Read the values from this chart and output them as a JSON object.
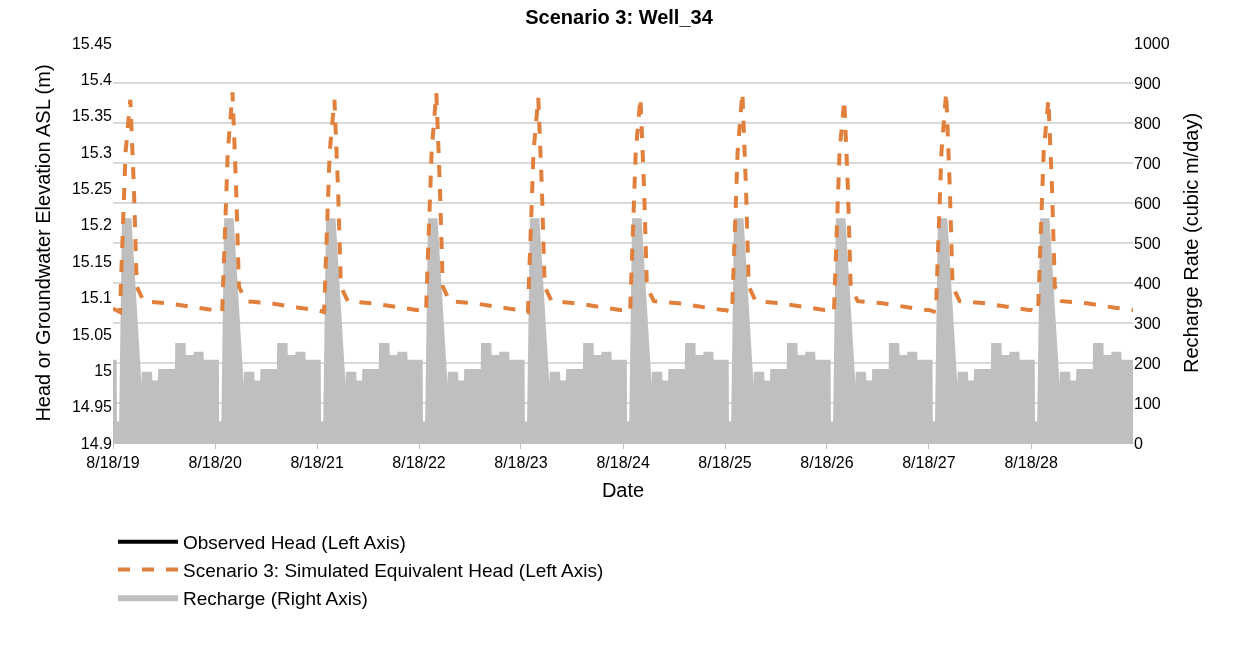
{
  "chart_data": {
    "type": "line",
    "title": "Scenario 3: Well_34",
    "xlabel": "Date",
    "ylabel": "Head or Groundwater Elevation ASL (m)",
    "y2label": "Recharge Rate (cubic m/day)",
    "xlim": [
      "2019-08-18",
      "2029-08-18"
    ],
    "xticks": [
      {
        "value": "2019-08-18",
        "label": "8/18/19"
      },
      {
        "value": "2020-08-18",
        "label": "8/18/20"
      },
      {
        "value": "2021-08-18",
        "label": "8/18/21"
      },
      {
        "value": "2022-08-18",
        "label": "8/18/22"
      },
      {
        "value": "2023-08-18",
        "label": "8/18/23"
      },
      {
        "value": "2024-08-18",
        "label": "8/18/24"
      },
      {
        "value": "2025-08-18",
        "label": "8/18/25"
      },
      {
        "value": "2026-08-18",
        "label": "8/18/26"
      },
      {
        "value": "2027-08-18",
        "label": "8/18/27"
      },
      {
        "value": "2028-08-18",
        "label": "8/18/28"
      }
    ],
    "ylim": [
      14.9,
      15.45
    ],
    "yticks": [
      14.9,
      14.95,
      15,
      15.05,
      15.1,
      15.15,
      15.2,
      15.25,
      15.3,
      15.35,
      15.4,
      15.45
    ],
    "y2lim": [
      0,
      1000
    ],
    "y2ticks": [
      0,
      100,
      200,
      300,
      400,
      500,
      600,
      700,
      800,
      900,
      1000
    ],
    "grid": "y",
    "legend": "bottom",
    "series": [
      {
        "name": "Observed Head (Left Axis)",
        "color": "#000000",
        "line_style": "solid"
      },
      {
        "name": "Scenario 3: Simulated Equivalent Head (Left Axis)",
        "color": "#e0803c",
        "line_style": "dashed",
        "x": [
          "2019-08-18",
          "2019-09-12",
          "2019-10-02",
          "2019-10-19",
          "2019-11-01",
          "2019-11-11",
          "2019-12-06",
          "2020-03-06",
          "2020-06-14",
          "2020-08-08",
          "2020-08-18",
          "2020-09-12",
          "2020-10-02",
          "2020-10-19",
          "2020-11-01",
          "2020-11-11",
          "2020-12-06",
          "2021-03-06",
          "2021-06-14",
          "2021-08-08",
          "2021-08-18",
          "2021-09-12",
          "2021-10-02",
          "2021-10-19",
          "2021-11-01",
          "2021-11-11",
          "2021-12-06",
          "2022-03-06",
          "2022-06-14",
          "2022-08-08",
          "2022-08-18",
          "2022-09-12",
          "2022-10-02",
          "2022-10-19",
          "2022-11-01",
          "2022-11-11",
          "2022-12-06",
          "2023-03-06",
          "2023-06-14",
          "2023-08-08",
          "2023-08-18",
          "2023-09-12",
          "2023-10-02",
          "2023-10-19",
          "2023-11-01",
          "2023-11-11",
          "2023-12-06",
          "2024-03-06",
          "2024-06-14",
          "2024-08-08",
          "2024-08-18",
          "2024-09-12",
          "2024-10-02",
          "2024-10-19",
          "2024-11-01",
          "2024-11-11",
          "2024-12-06",
          "2025-03-06",
          "2025-06-14",
          "2025-08-08",
          "2025-08-18",
          "2025-09-12",
          "2025-10-02",
          "2025-10-19",
          "2025-11-01",
          "2025-11-11",
          "2025-12-06",
          "2026-03-06",
          "2026-06-14",
          "2026-08-08",
          "2026-08-18",
          "2026-09-12",
          "2026-10-02",
          "2026-10-19",
          "2026-11-01",
          "2026-11-11",
          "2026-12-06",
          "2027-03-06",
          "2027-06-14",
          "2027-08-08",
          "2027-08-18",
          "2027-09-12",
          "2027-10-02",
          "2027-10-19",
          "2027-11-01",
          "2027-11-11",
          "2027-12-06",
          "2028-03-06",
          "2028-06-14",
          "2028-08-08",
          "2028-08-18",
          "2028-09-12",
          "2028-10-02",
          "2028-10-19",
          "2028-11-01",
          "2028-11-11",
          "2028-12-06",
          "2029-03-06",
          "2029-06-14",
          "2029-08-18"
        ],
        "values": [
          15.085,
          15.08,
          15.3,
          15.372,
          15.25,
          15.115,
          15.095,
          15.092,
          15.086,
          15.083,
          15.083,
          15.08,
          15.3,
          15.382,
          15.25,
          15.115,
          15.095,
          15.092,
          15.086,
          15.083,
          15.083,
          15.08,
          15.3,
          15.372,
          15.25,
          15.115,
          15.095,
          15.092,
          15.086,
          15.083,
          15.083,
          15.08,
          15.3,
          15.382,
          15.25,
          15.115,
          15.095,
          15.092,
          15.086,
          15.083,
          15.083,
          15.08,
          15.3,
          15.375,
          15.25,
          15.115,
          15.095,
          15.092,
          15.086,
          15.083,
          15.083,
          15.08,
          15.3,
          15.375,
          15.25,
          15.115,
          15.095,
          15.092,
          15.086,
          15.083,
          15.083,
          15.08,
          15.3,
          15.382,
          15.25,
          15.115,
          15.095,
          15.092,
          15.086,
          15.083,
          15.083,
          15.08,
          15.3,
          15.372,
          15.25,
          15.115,
          15.095,
          15.092,
          15.086,
          15.083,
          15.083,
          15.08,
          15.3,
          15.382,
          15.25,
          15.115,
          15.095,
          15.092,
          15.086,
          15.083,
          15.083,
          15.08,
          15.3,
          15.372,
          15.25,
          15.115,
          15.095,
          15.092,
          15.086,
          15.083
        ]
      },
      {
        "name": "Recharge (Right Axis)",
        "type": "area",
        "axis": "y2",
        "color": "#bfbfbf",
        "x": [
          "2019-08-18",
          "2019-08-31",
          "2019-09-01",
          "2019-09-09",
          "2019-09-19",
          "2019-10-23",
          "2019-11-28",
          "2019-11-29",
          "2020-01-05",
          "2020-01-06",
          "2020-01-26",
          "2020-01-27",
          "2020-03-27",
          "2020-03-28",
          "2020-05-04",
          "2020-05-05",
          "2020-06-01",
          "2020-06-02",
          "2020-07-07",
          "2020-07-08",
          "2020-08-18",
          "2020-08-31",
          "2020-09-01",
          "2020-09-09",
          "2020-09-19",
          "2020-10-23",
          "2020-11-28",
          "2020-11-29",
          "2021-01-05",
          "2021-01-06",
          "2021-01-26",
          "2021-01-27",
          "2021-03-27",
          "2021-03-28",
          "2021-05-04",
          "2021-05-05",
          "2021-06-01",
          "2021-06-02",
          "2021-07-07",
          "2021-07-08",
          "2021-08-18",
          "2021-08-31",
          "2021-09-01",
          "2021-09-09",
          "2021-09-19",
          "2021-10-23",
          "2021-11-28",
          "2021-11-29",
          "2022-01-05",
          "2022-01-06",
          "2022-01-26",
          "2022-01-27",
          "2022-03-27",
          "2022-03-28",
          "2022-05-04",
          "2022-05-05",
          "2022-06-01",
          "2022-06-02",
          "2022-07-07",
          "2022-07-08",
          "2022-08-18",
          "2022-08-31",
          "2022-09-01",
          "2022-09-09",
          "2022-09-19",
          "2022-10-23",
          "2022-11-28",
          "2022-11-29",
          "2023-01-05",
          "2023-01-06",
          "2023-01-26",
          "2023-01-27",
          "2023-03-27",
          "2023-03-28",
          "2023-05-04",
          "2023-05-05",
          "2023-06-01",
          "2023-06-02",
          "2023-07-07",
          "2023-07-08",
          "2023-08-18",
          "2023-08-31",
          "2023-09-01",
          "2023-09-09",
          "2023-09-19",
          "2023-10-23",
          "2023-11-28",
          "2023-11-29",
          "2024-01-05",
          "2024-01-06",
          "2024-01-26",
          "2024-01-27",
          "2024-03-27",
          "2024-03-28",
          "2024-05-04",
          "2024-05-05",
          "2024-06-01",
          "2024-06-02",
          "2024-07-07",
          "2024-07-08",
          "2024-08-18",
          "2024-08-31",
          "2024-09-01",
          "2024-09-09",
          "2024-09-19",
          "2024-10-23",
          "2024-11-28",
          "2024-11-29",
          "2025-01-05",
          "2025-01-06",
          "2025-01-26",
          "2025-01-27",
          "2025-03-27",
          "2025-03-28",
          "2025-05-04",
          "2025-05-05",
          "2025-06-01",
          "2025-06-02",
          "2025-07-07",
          "2025-07-08",
          "2025-08-18",
          "2025-08-31",
          "2025-09-01",
          "2025-09-09",
          "2025-09-19",
          "2025-10-23",
          "2025-11-28",
          "2025-11-29",
          "2026-01-05",
          "2026-01-06",
          "2026-01-26",
          "2026-01-27",
          "2026-03-27",
          "2026-03-28",
          "2026-05-04",
          "2026-05-05",
          "2026-06-01",
          "2026-06-02",
          "2026-07-07",
          "2026-07-08",
          "2026-08-18",
          "2026-08-31",
          "2026-09-01",
          "2026-09-09",
          "2026-09-19",
          "2026-10-23",
          "2026-11-28",
          "2026-11-29",
          "2027-01-05",
          "2027-01-06",
          "2027-01-26",
          "2027-01-27",
          "2027-03-27",
          "2027-03-28",
          "2027-05-04",
          "2027-05-05",
          "2027-06-01",
          "2027-06-02",
          "2027-07-07",
          "2027-07-08",
          "2027-08-18",
          "2027-08-31",
          "2027-09-01",
          "2027-09-09",
          "2027-09-19",
          "2027-10-23",
          "2027-11-28",
          "2027-11-29",
          "2028-01-05",
          "2028-01-06",
          "2028-01-26",
          "2028-01-27",
          "2028-03-27",
          "2028-03-28",
          "2028-05-04",
          "2028-05-05",
          "2028-06-01",
          "2028-06-02",
          "2028-07-07",
          "2028-07-08",
          "2028-08-18",
          "2028-08-31",
          "2028-09-01",
          "2028-09-09",
          "2028-09-19",
          "2028-10-23",
          "2028-11-28",
          "2028-11-29",
          "2029-01-05",
          "2029-01-06",
          "2029-01-26",
          "2029-01-27",
          "2029-03-27",
          "2029-03-28",
          "2029-05-04",
          "2029-05-05",
          "2029-06-01",
          "2029-06-02",
          "2029-07-07",
          "2029-07-08",
          "2029-08-18"
        ],
        "values": [
          208,
          208,
          54,
          54,
          562,
          562,
          146,
          178,
          178,
          156,
          156,
          185,
          185,
          250,
          250,
          220,
          220,
          228,
          228,
          208,
          208,
          208,
          54,
          54,
          562,
          562,
          146,
          178,
          178,
          156,
          156,
          185,
          185,
          250,
          250,
          220,
          220,
          228,
          228,
          208,
          208,
          208,
          54,
          54,
          562,
          562,
          146,
          178,
          178,
          156,
          156,
          185,
          185,
          250,
          250,
          220,
          220,
          228,
          228,
          208,
          208,
          208,
          54,
          54,
          562,
          562,
          146,
          178,
          178,
          156,
          156,
          185,
          185,
          250,
          250,
          220,
          220,
          228,
          228,
          208,
          208,
          208,
          54,
          54,
          562,
          562,
          146,
          178,
          178,
          156,
          156,
          185,
          185,
          250,
          250,
          220,
          220,
          228,
          228,
          208,
          208,
          208,
          54,
          54,
          562,
          562,
          146,
          178,
          178,
          156,
          156,
          185,
          185,
          250,
          250,
          220,
          220,
          228,
          228,
          208,
          208,
          208,
          54,
          54,
          562,
          562,
          146,
          178,
          178,
          156,
          156,
          185,
          185,
          250,
          250,
          220,
          220,
          228,
          228,
          208,
          208,
          208,
          54,
          54,
          562,
          562,
          146,
          178,
          178,
          156,
          156,
          185,
          185,
          250,
          250,
          220,
          220,
          228,
          228,
          208,
          208,
          208,
          54,
          54,
          562,
          562,
          146,
          178,
          178,
          156,
          156,
          185,
          185,
          250,
          250,
          220,
          220,
          228,
          228,
          208,
          208,
          208,
          54,
          54,
          562,
          562,
          146,
          178,
          178,
          156,
          156,
          185,
          185,
          250,
          250,
          220,
          220,
          228,
          228,
          208,
          208
        ]
      }
    ]
  }
}
